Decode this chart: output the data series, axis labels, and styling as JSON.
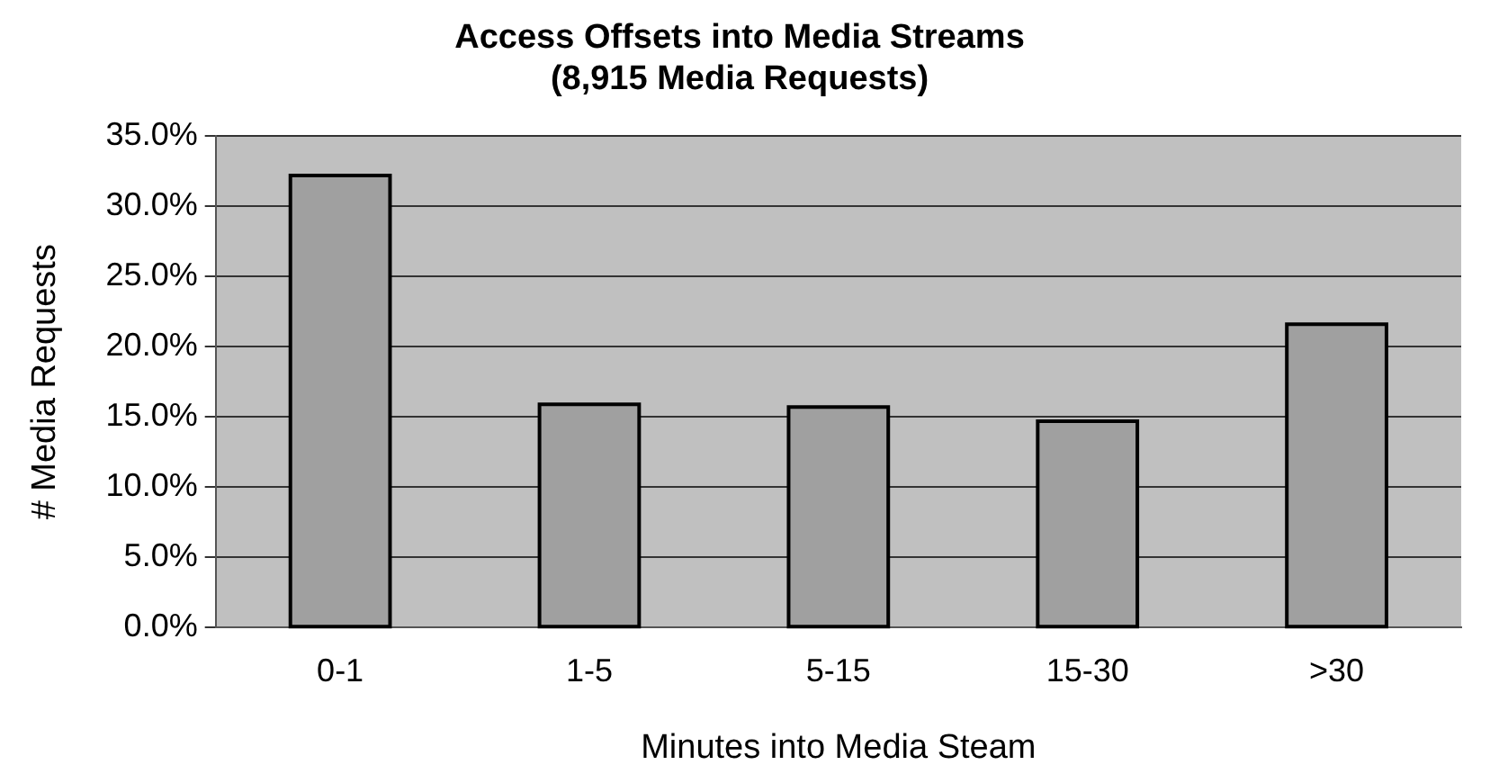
{
  "chart_data": {
    "type": "bar",
    "title": [
      "Access Offsets into Media Streams",
      "(8,915 Media Requests)"
    ],
    "xlabel": "Minutes into Media Steam",
    "ylabel": "# Media Requests",
    "categories": [
      "0-1",
      "1-5",
      "5-15",
      "15-30",
      ">30"
    ],
    "values": [
      32.2,
      15.9,
      15.7,
      14.7,
      21.6
    ],
    "color": "#a0a0a0",
    "ylim": [
      0,
      35
    ],
    "yticks": [
      {
        "value": 0,
        "label": "0.0%"
      },
      {
        "value": 5,
        "label": "5.0%"
      },
      {
        "value": 10,
        "label": "10.0%"
      },
      {
        "value": 15,
        "label": "15.0%"
      },
      {
        "value": 20,
        "label": "20.0%"
      },
      {
        "value": 25,
        "label": "25.0%"
      },
      {
        "value": 30,
        "label": "30.0%"
      },
      {
        "value": 35,
        "label": "35.0%"
      }
    ],
    "grid": "y",
    "legend": false
  }
}
